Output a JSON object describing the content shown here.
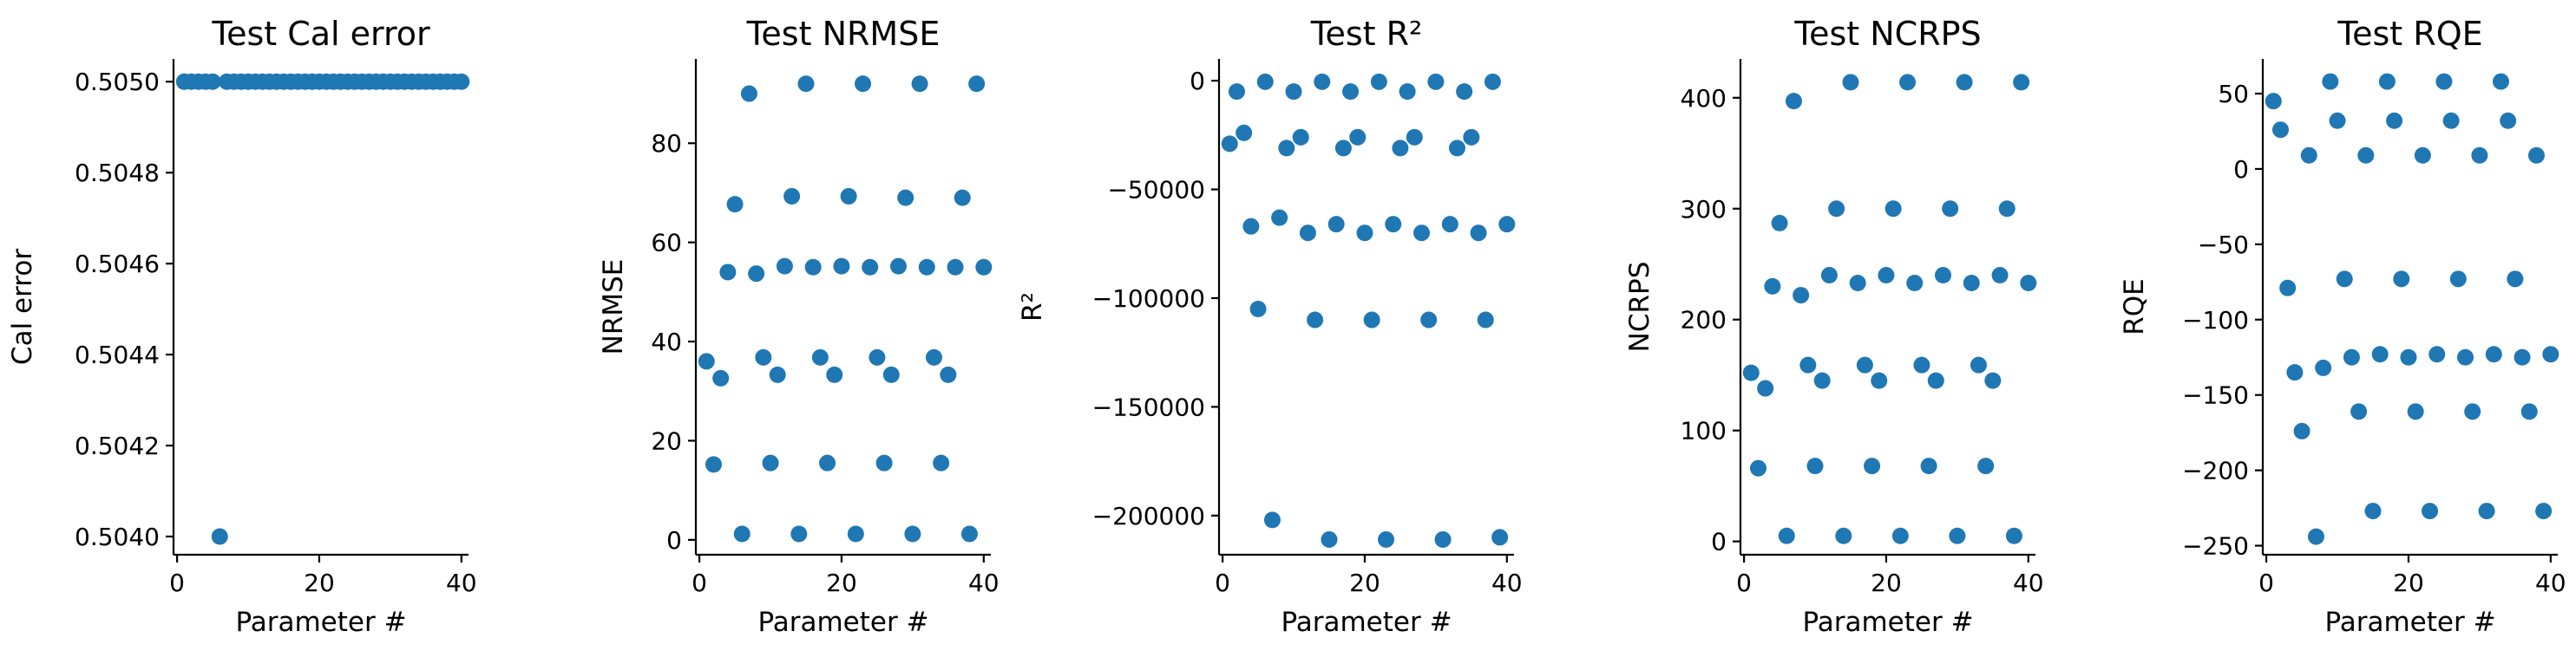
{
  "marker_color": "#1f77b4",
  "chart_data": [
    {
      "type": "scatter",
      "title": "Test Cal error",
      "xlabel": "Parameter #",
      "ylabel": "Cal error",
      "xlim": [
        -0.5,
        41
      ],
      "ylim": [
        0.50396,
        0.50505
      ],
      "xticks": [
        0,
        20,
        40
      ],
      "yticks": [
        0.504,
        0.5042,
        0.5044,
        0.5046,
        0.5048,
        0.505
      ],
      "ytick_labels": [
        "0.5040",
        "0.5042",
        "0.5044",
        "0.5046",
        "0.5048",
        "0.5050"
      ],
      "x": [
        1,
        2,
        3,
        4,
        5,
        6,
        7,
        8,
        9,
        10,
        11,
        12,
        13,
        14,
        15,
        16,
        17,
        18,
        19,
        20,
        21,
        22,
        23,
        24,
        25,
        26,
        27,
        28,
        29,
        30,
        31,
        32,
        33,
        34,
        35,
        36,
        37,
        38,
        39,
        40
      ],
      "y": [
        0.505,
        0.505,
        0.505,
        0.505,
        0.505,
        0.504,
        0.505,
        0.505,
        0.505,
        0.505,
        0.505,
        0.505,
        0.505,
        0.505,
        0.505,
        0.505,
        0.505,
        0.505,
        0.505,
        0.505,
        0.505,
        0.505,
        0.505,
        0.505,
        0.505,
        0.505,
        0.505,
        0.505,
        0.505,
        0.505,
        0.505,
        0.505,
        0.505,
        0.505,
        0.505,
        0.505,
        0.505,
        0.505,
        0.505,
        0.505
      ]
    },
    {
      "type": "scatter",
      "title": "Test NRMSE",
      "xlabel": "Parameter #",
      "ylabel": "NRMSE",
      "xlim": [
        -0.5,
        41
      ],
      "ylim": [
        -3,
        97
      ],
      "xticks": [
        0,
        20,
        40
      ],
      "yticks": [
        0,
        20,
        40,
        60,
        80
      ],
      "ytick_labels": [
        "0",
        "20",
        "40",
        "60",
        "80"
      ],
      "x": [
        1,
        2,
        3,
        4,
        5,
        6,
        7,
        8,
        9,
        10,
        11,
        12,
        13,
        14,
        15,
        16,
        17,
        18,
        19,
        20,
        21,
        22,
        23,
        24,
        25,
        26,
        27,
        28,
        29,
        30,
        31,
        32,
        33,
        34,
        35,
        36,
        37,
        38,
        39,
        40
      ],
      "y": [
        36,
        15.2,
        32.6,
        54,
        67.7,
        1.2,
        90,
        53.7,
        36.8,
        15.5,
        33.3,
        55.2,
        69.3,
        1.2,
        92,
        55,
        36.8,
        15.5,
        33.3,
        55.2,
        69.3,
        1.2,
        92,
        55,
        36.8,
        15.5,
        33.3,
        55.2,
        69,
        1.2,
        92,
        55,
        36.8,
        15.5,
        33.3,
        55,
        69,
        1.2,
        92,
        55
      ]
    },
    {
      "type": "scatter",
      "title": "Test R²",
      "xlabel": "Parameter #",
      "ylabel": "R²",
      "xlim": [
        -0.5,
        41
      ],
      "ylim": [
        -218000,
        10000
      ],
      "xticks": [
        0,
        20,
        40
      ],
      "yticks": [
        0,
        -50000,
        -100000,
        -150000,
        -200000
      ],
      "ytick_labels": [
        "0",
        "−50000",
        "−100000",
        "−150000",
        "−200000"
      ],
      "x": [
        1,
        2,
        3,
        4,
        5,
        6,
        7,
        8,
        9,
        10,
        11,
        12,
        13,
        14,
        15,
        16,
        17,
        18,
        19,
        20,
        21,
        22,
        23,
        24,
        25,
        26,
        27,
        28,
        29,
        30,
        31,
        32,
        33,
        34,
        35,
        36,
        37,
        38,
        39,
        40
      ],
      "y": [
        -29000,
        -5000,
        -24000,
        -67000,
        -105000,
        -500,
        -202000,
        -63000,
        -31000,
        -5000,
        -26000,
        -70000,
        -110000,
        -500,
        -211000,
        -66000,
        -31000,
        -5000,
        -26000,
        -70000,
        -110000,
        -500,
        -211000,
        -66000,
        -31000,
        -5000,
        -26000,
        -70000,
        -110000,
        -500,
        -211000,
        -66000,
        -31000,
        -5000,
        -26000,
        -70000,
        -110000,
        -500,
        -210000,
        -66000
      ]
    },
    {
      "type": "scatter",
      "title": "Test NCRPS",
      "xlabel": "Parameter #",
      "ylabel": "NCRPS",
      "xlim": [
        -0.5,
        41
      ],
      "ylim": [
        -12,
        435
      ],
      "xticks": [
        0,
        20,
        40
      ],
      "yticks": [
        0,
        100,
        200,
        300,
        400
      ],
      "ytick_labels": [
        "0",
        "100",
        "200",
        "300",
        "400"
      ],
      "x": [
        1,
        2,
        3,
        4,
        5,
        6,
        7,
        8,
        9,
        10,
        11,
        12,
        13,
        14,
        15,
        16,
        17,
        18,
        19,
        20,
        21,
        22,
        23,
        24,
        25,
        26,
        27,
        28,
        29,
        30,
        31,
        32,
        33,
        34,
        35,
        36,
        37,
        38,
        39,
        40
      ],
      "y": [
        152,
        66,
        138,
        230,
        287,
        5,
        397,
        222,
        159,
        68,
        145,
        240,
        300,
        5,
        414,
        233,
        159,
        68,
        145,
        240,
        300,
        5,
        414,
        233,
        159,
        68,
        145,
        240,
        300,
        5,
        414,
        233,
        159,
        68,
        145,
        240,
        300,
        5,
        414,
        233
      ]
    },
    {
      "type": "scatter",
      "title": "Test RQE",
      "xlabel": "Parameter #",
      "ylabel": "RQE",
      "xlim": [
        -0.5,
        41
      ],
      "ylim": [
        -256,
        73
      ],
      "xticks": [
        0,
        20,
        40
      ],
      "yticks": [
        50,
        0,
        -50,
        -100,
        -150,
        -200,
        -250
      ],
      "ytick_labels": [
        "50",
        "0",
        "−50",
        "−100",
        "−150",
        "−200",
        "−250"
      ],
      "x": [
        1,
        2,
        3,
        4,
        5,
        6,
        7,
        8,
        9,
        10,
        11,
        12,
        13,
        14,
        15,
        16,
        17,
        18,
        19,
        20,
        21,
        22,
        23,
        24,
        25,
        26,
        27,
        28,
        29,
        30,
        31,
        32,
        33,
        34,
        35,
        36,
        37,
        38,
        39,
        40
      ],
      "y": [
        45,
        26,
        -79,
        -135,
        -174,
        9,
        -244,
        -132,
        58,
        32,
        -73,
        -125,
        -161,
        9,
        -227,
        -123,
        58,
        32,
        -73,
        -125,
        -161,
        9,
        -227,
        -123,
        58,
        32,
        -73,
        -125,
        -161,
        9,
        -227,
        -123,
        58,
        32,
        -73,
        -125,
        -161,
        9,
        -227,
        -123
      ]
    }
  ]
}
